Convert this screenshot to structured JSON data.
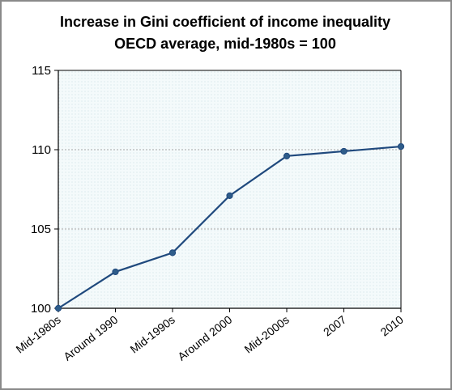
{
  "chart_data": {
    "type": "line",
    "title": "Increase in Gini coefficient of income inequality",
    "subtitle": "OECD average, mid-1980s = 100",
    "xlabel": "",
    "ylabel": "",
    "categories": [
      "Mid-1980s",
      "Around 1990",
      "Mid-1990s",
      "Around 2000",
      "Mid-2000s",
      "2007",
      "2010"
    ],
    "series": [
      {
        "values": [
          100,
          102.3,
          103.5,
          107.1,
          109.6,
          109.9,
          110.2
        ]
      }
    ],
    "ylim": [
      100,
      115
    ],
    "yticks": [
      "100",
      "105",
      "110",
      "115"
    ],
    "grid": true,
    "legend": "none"
  },
  "colors": {
    "line": "#1f497d",
    "marker": "#2e5c8a",
    "plot_bg": "#eef7f9",
    "grid": "#a6a6a6"
  }
}
